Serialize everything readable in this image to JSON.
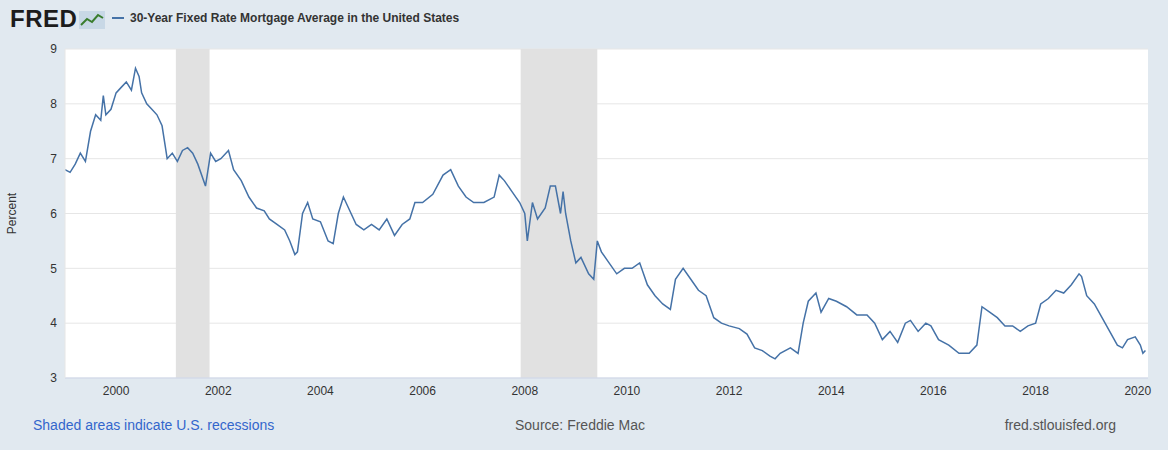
{
  "chart_data": {
    "type": "line",
    "logo": "FRED",
    "y_label": "Percent",
    "note": "Shaded areas indicate U.S. recessions",
    "source": "Source: Freddie Mac",
    "url": "fred.stlouisfed.org",
    "grid": true,
    "xlim": [
      1999,
      2020.2
    ],
    "xticks": [
      2000,
      2002,
      2004,
      2006,
      2008,
      2010,
      2012,
      2014,
      2016,
      2018,
      2020
    ],
    "ylim": [
      3,
      9
    ],
    "yticks": [
      3,
      4,
      5,
      6,
      7,
      8,
      9
    ],
    "recessions": [
      [
        2001.17,
        2001.83
      ],
      [
        2007.92,
        2009.42
      ]
    ],
    "x": [
      1999,
      1999.1,
      1999.2,
      1999.3,
      1999.4,
      1999.5,
      1999.6,
      1999.7,
      1999.75,
      1999.8,
      1999.9,
      2000,
      2000.1,
      2000.2,
      2000.3,
      2000.38,
      2000.45,
      2000.5,
      2000.6,
      2000.7,
      2000.8,
      2000.9,
      2000.95,
      2001,
      2001.1,
      2001.2,
      2001.3,
      2001.4,
      2001.5,
      2001.6,
      2001.75,
      2001.85,
      2001.95,
      2002.05,
      2002.2,
      2002.3,
      2002.45,
      2002.6,
      2002.75,
      2002.9,
      2003,
      2003.15,
      2003.3,
      2003.4,
      2003.5,
      2003.55,
      2003.65,
      2003.75,
      2003.85,
      2004,
      2004.15,
      2004.25,
      2004.35,
      2004.45,
      2004.55,
      2004.7,
      2004.85,
      2005,
      2005.15,
      2005.3,
      2005.45,
      2005.6,
      2005.75,
      2005.85,
      2006,
      2006.2,
      2006.4,
      2006.55,
      2006.7,
      2006.85,
      2007,
      2007.2,
      2007.4,
      2007.5,
      2007.6,
      2007.75,
      2007.9,
      2008,
      2008.05,
      2008.15,
      2008.25,
      2008.4,
      2008.5,
      2008.6,
      2008.7,
      2008.75,
      2008.8,
      2008.9,
      2009,
      2009.1,
      2009.25,
      2009.35,
      2009.42,
      2009.5,
      2009.65,
      2009.8,
      2009.95,
      2010.1,
      2010.25,
      2010.4,
      2010.55,
      2010.7,
      2010.85,
      2010.95,
      2011.1,
      2011.25,
      2011.4,
      2011.55,
      2011.7,
      2011.85,
      2012,
      2012.2,
      2012.35,
      2012.5,
      2012.65,
      2012.8,
      2012.9,
      2013,
      2013.2,
      2013.35,
      2013.45,
      2013.55,
      2013.7,
      2013.8,
      2013.95,
      2014.1,
      2014.3,
      2014.5,
      2014.7,
      2014.85,
      2015,
      2015.15,
      2015.3,
      2015.45,
      2015.55,
      2015.7,
      2015.85,
      2015.95,
      2016.1,
      2016.3,
      2016.5,
      2016.7,
      2016.85,
      2016.95,
      2017.1,
      2017.25,
      2017.4,
      2017.55,
      2017.7,
      2017.85,
      2018,
      2018.1,
      2018.25,
      2018.4,
      2018.55,
      2018.7,
      2018.85,
      2018.9,
      2019,
      2019.15,
      2019.3,
      2019.45,
      2019.6,
      2019.7,
      2019.8,
      2019.95,
      2020.05,
      2020.1,
      2020.15
    ],
    "series": [
      {
        "name": "30-Year Fixed Rate Mortgage Average in the United States",
        "color": "#4572a7",
        "values": [
          6.8,
          6.75,
          6.9,
          7.1,
          6.95,
          7.5,
          7.8,
          7.7,
          8.15,
          7.8,
          7.9,
          8.2,
          8.3,
          8.4,
          8.25,
          8.65,
          8.5,
          8.2,
          8.0,
          7.9,
          7.8,
          7.6,
          7.3,
          7.0,
          7.1,
          6.95,
          7.15,
          7.2,
          7.1,
          6.9,
          6.5,
          7.1,
          6.95,
          7.0,
          7.15,
          6.8,
          6.6,
          6.3,
          6.1,
          6.05,
          5.9,
          5.8,
          5.7,
          5.5,
          5.25,
          5.3,
          6.0,
          6.2,
          5.9,
          5.85,
          5.5,
          5.45,
          6.0,
          6.3,
          6.1,
          5.8,
          5.7,
          5.8,
          5.7,
          5.9,
          5.6,
          5.8,
          5.9,
          6.2,
          6.2,
          6.35,
          6.7,
          6.8,
          6.5,
          6.3,
          6.2,
          6.2,
          6.3,
          6.7,
          6.6,
          6.4,
          6.2,
          6.0,
          5.5,
          6.2,
          5.9,
          6.1,
          6.5,
          6.5,
          6.0,
          6.4,
          6.0,
          5.5,
          5.1,
          5.2,
          4.9,
          4.8,
          5.5,
          5.3,
          5.1,
          4.9,
          5.0,
          5.0,
          5.1,
          4.7,
          4.5,
          4.35,
          4.25,
          4.8,
          5.0,
          4.8,
          4.6,
          4.5,
          4.1,
          4.0,
          3.95,
          3.9,
          3.8,
          3.55,
          3.5,
          3.4,
          3.35,
          3.45,
          3.55,
          3.45,
          4.0,
          4.4,
          4.55,
          4.2,
          4.45,
          4.4,
          4.3,
          4.15,
          4.15,
          4.0,
          3.7,
          3.85,
          3.65,
          4.0,
          4.05,
          3.85,
          4.0,
          3.95,
          3.7,
          3.6,
          3.45,
          3.45,
          3.6,
          4.3,
          4.2,
          4.1,
          3.95,
          3.95,
          3.85,
          3.95,
          4.0,
          4.35,
          4.45,
          4.6,
          4.55,
          4.7,
          4.9,
          4.85,
          4.5,
          4.35,
          4.1,
          3.85,
          3.6,
          3.55,
          3.7,
          3.75,
          3.6,
          3.45,
          3.5
        ]
      }
    ]
  }
}
